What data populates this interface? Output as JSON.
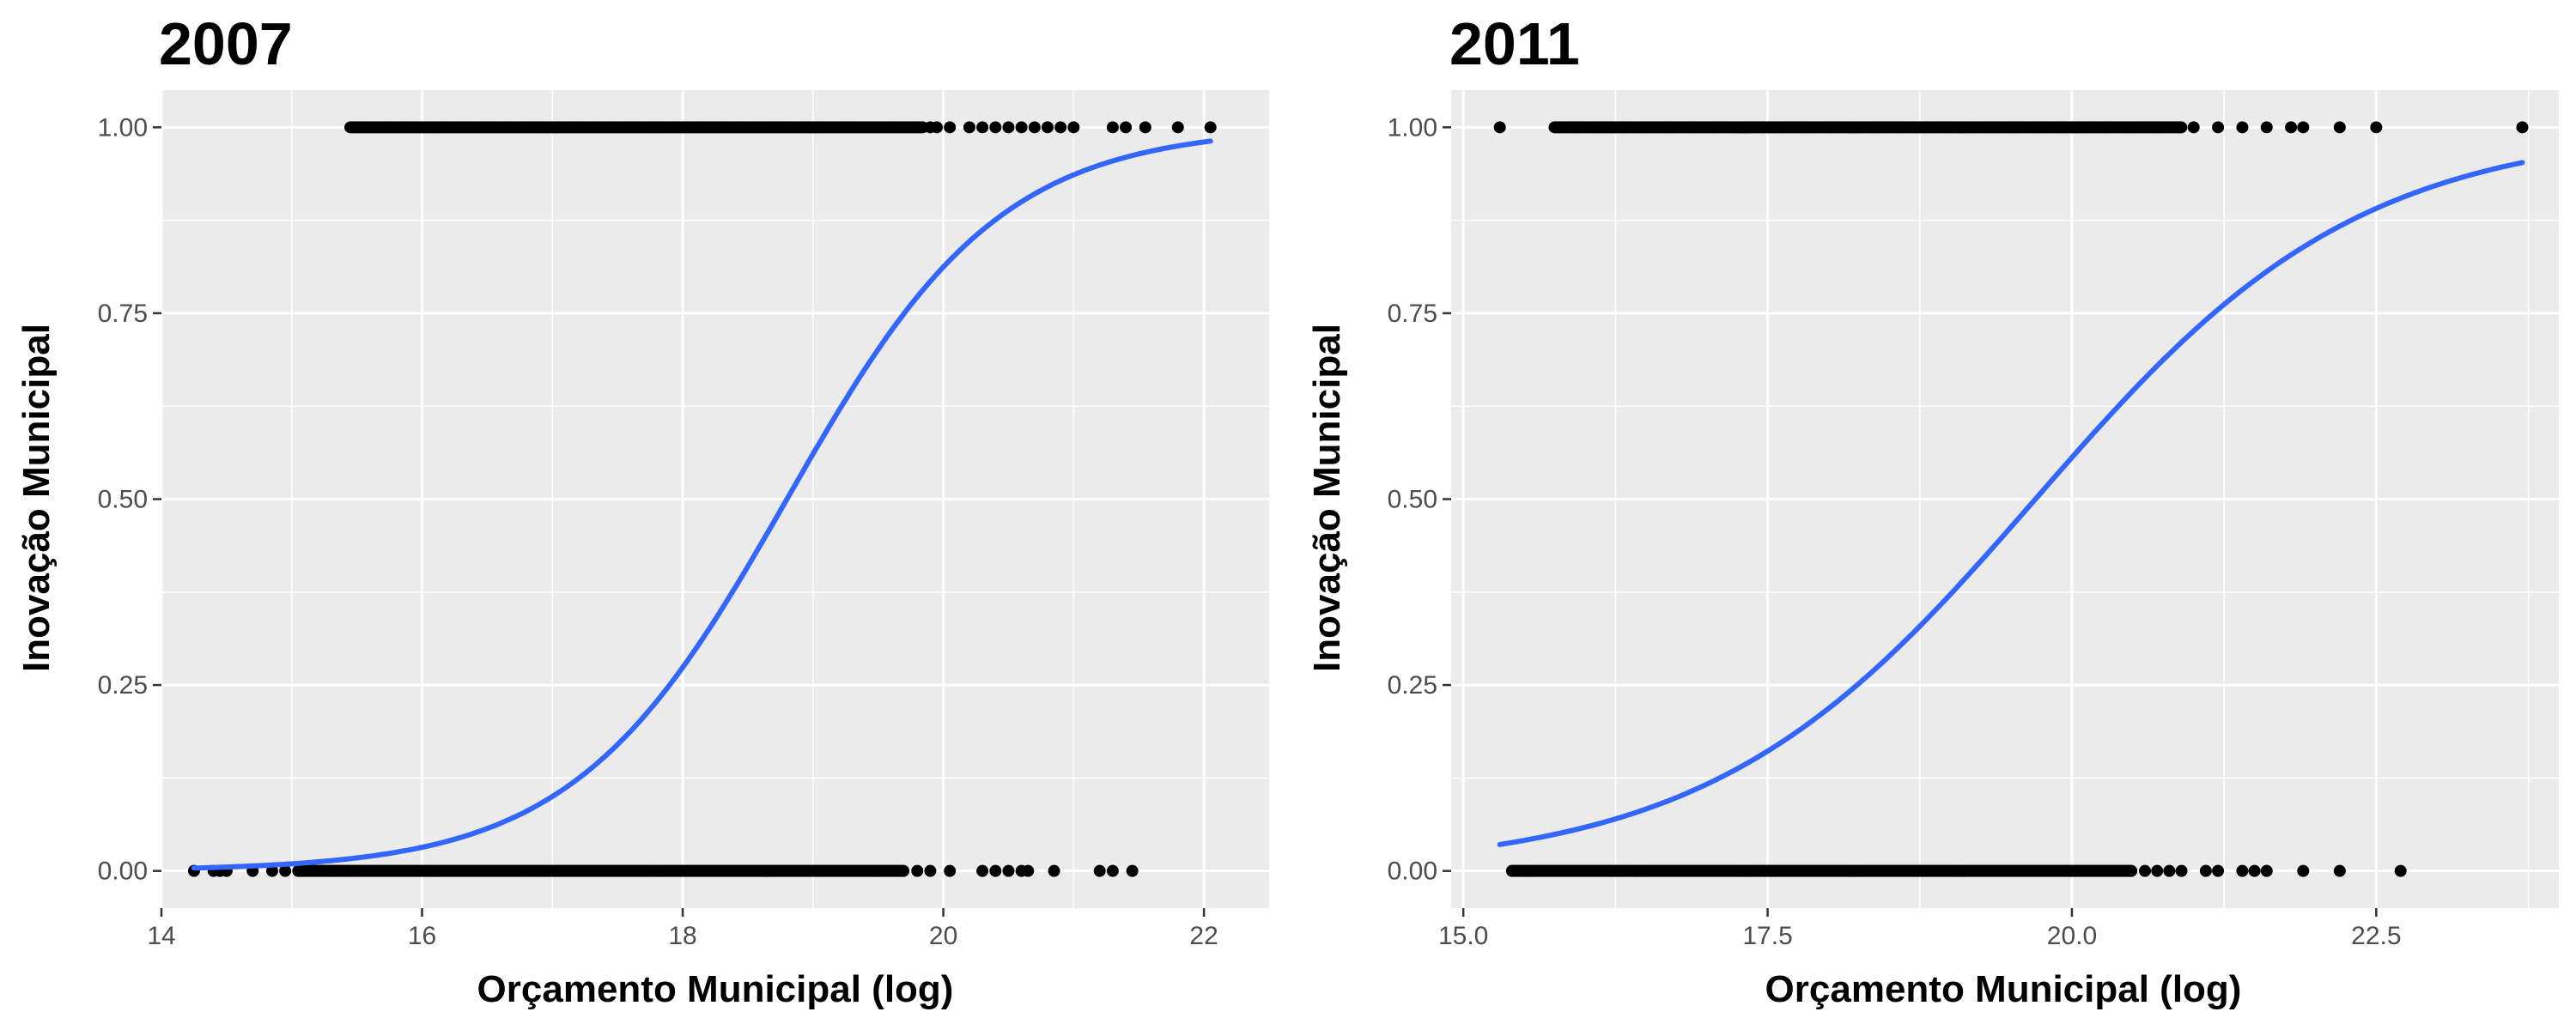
{
  "colors": {
    "panel": "#ebebeb",
    "grid": "#ffffff",
    "points": "#000000",
    "curve": "#3366ff"
  },
  "chart_data": [
    {
      "type": "scatter",
      "title": "2007",
      "xlabel": "Orçamento Municipal (log)",
      "ylabel": "Inovação Municipal",
      "xlim": [
        14.0,
        22.5
      ],
      "ylim": [
        -0.05,
        1.05
      ],
      "x_ticks": [
        14,
        16,
        18,
        20,
        22
      ],
      "x_tick_labels": [
        "14",
        "16",
        "18",
        "20",
        "22"
      ],
      "y_ticks": [
        0,
        0.25,
        0.5,
        0.75,
        1
      ],
      "y_tick_labels": [
        "0.00",
        "0.25",
        "0.50",
        "0.75",
        "1.00"
      ],
      "grid": true,
      "points_y1": {
        "dense_range": [
          15.45,
          19.85
        ],
        "x": [
          19.9,
          19.95,
          20.05,
          20.2,
          20.3,
          20.4,
          20.5,
          20.6,
          20.7,
          20.8,
          20.9,
          21.0,
          21.3,
          21.4,
          21.55,
          21.8,
          22.05
        ]
      },
      "points_y0": {
        "dense_range": [
          15.05,
          19.7
        ],
        "x": [
          14.25,
          14.4,
          14.45,
          14.5,
          14.7,
          14.85,
          14.95,
          19.8,
          19.9,
          20.05,
          20.3,
          20.4,
          20.5,
          20.6,
          20.65,
          20.85,
          21.2,
          21.3,
          21.45
        ]
      },
      "logistic_fit": {
        "x0": 18.8,
        "k": 1.22,
        "x_range": [
          14.25,
          22.05
        ]
      }
    },
    {
      "type": "scatter",
      "title": "2011",
      "xlabel": "Orçamento Municipal (log)",
      "ylabel": "Inovação Municipal",
      "xlim": [
        14.9,
        24.0
      ],
      "ylim": [
        -0.05,
        1.05
      ],
      "x_ticks": [
        15.0,
        17.5,
        20.0,
        22.5
      ],
      "x_tick_labels": [
        "15.0",
        "17.5",
        "20.0",
        "22.5"
      ],
      "y_ticks": [
        0,
        0.25,
        0.5,
        0.75,
        1
      ],
      "y_tick_labels": [
        "0.00",
        "0.25",
        "0.50",
        "0.75",
        "1.00"
      ],
      "grid": true,
      "points_y1": {
        "dense_range": [
          15.75,
          20.9
        ],
        "x": [
          15.3,
          21.0,
          21.2,
          21.4,
          21.6,
          21.8,
          21.9,
          22.2,
          22.5,
          23.7
        ]
      },
      "points_y0": {
        "dense_range": [
          15.4,
          20.5
        ],
        "x": [
          20.6,
          20.7,
          20.8,
          20.9,
          21.1,
          21.2,
          21.4,
          21.5,
          21.6,
          21.9,
          22.2,
          22.7
        ]
      },
      "logistic_fit": {
        "x0": 19.7,
        "k": 0.75,
        "x_range": [
          15.3,
          23.7
        ]
      }
    }
  ]
}
